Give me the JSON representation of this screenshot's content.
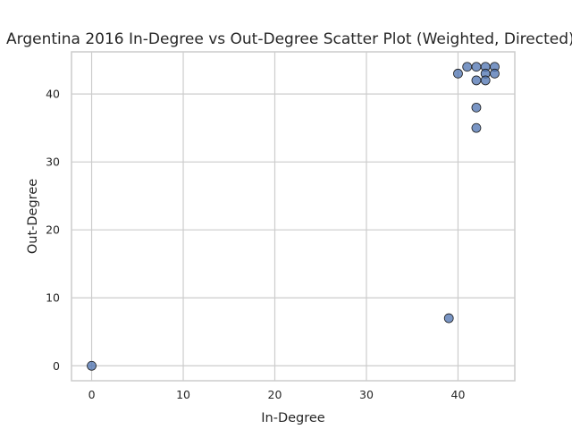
{
  "chart_data": {
    "type": "scatter",
    "title": "Argentina 2016 In-Degree vs Out-Degree Scatter Plot (Weighted, Directed)",
    "xlabel": "In-Degree",
    "ylabel": "Out-Degree",
    "xlim": [
      -2.2,
      46.2
    ],
    "ylim": [
      -2.2,
      46.2
    ],
    "xticks": [
      0,
      10,
      20,
      30,
      40
    ],
    "yticks": [
      0,
      10,
      20,
      30,
      40
    ],
    "grid": true,
    "color": "#4c72b0",
    "points": [
      {
        "x": 0,
        "y": 0
      },
      {
        "x": 39,
        "y": 7
      },
      {
        "x": 40,
        "y": 43
      },
      {
        "x": 41,
        "y": 44
      },
      {
        "x": 42,
        "y": 44
      },
      {
        "x": 42,
        "y": 42
      },
      {
        "x": 42,
        "y": 38
      },
      {
        "x": 42,
        "y": 35
      },
      {
        "x": 43,
        "y": 44
      },
      {
        "x": 43,
        "y": 43
      },
      {
        "x": 43,
        "y": 42
      },
      {
        "x": 44,
        "y": 44
      },
      {
        "x": 44,
        "y": 43
      }
    ]
  }
}
